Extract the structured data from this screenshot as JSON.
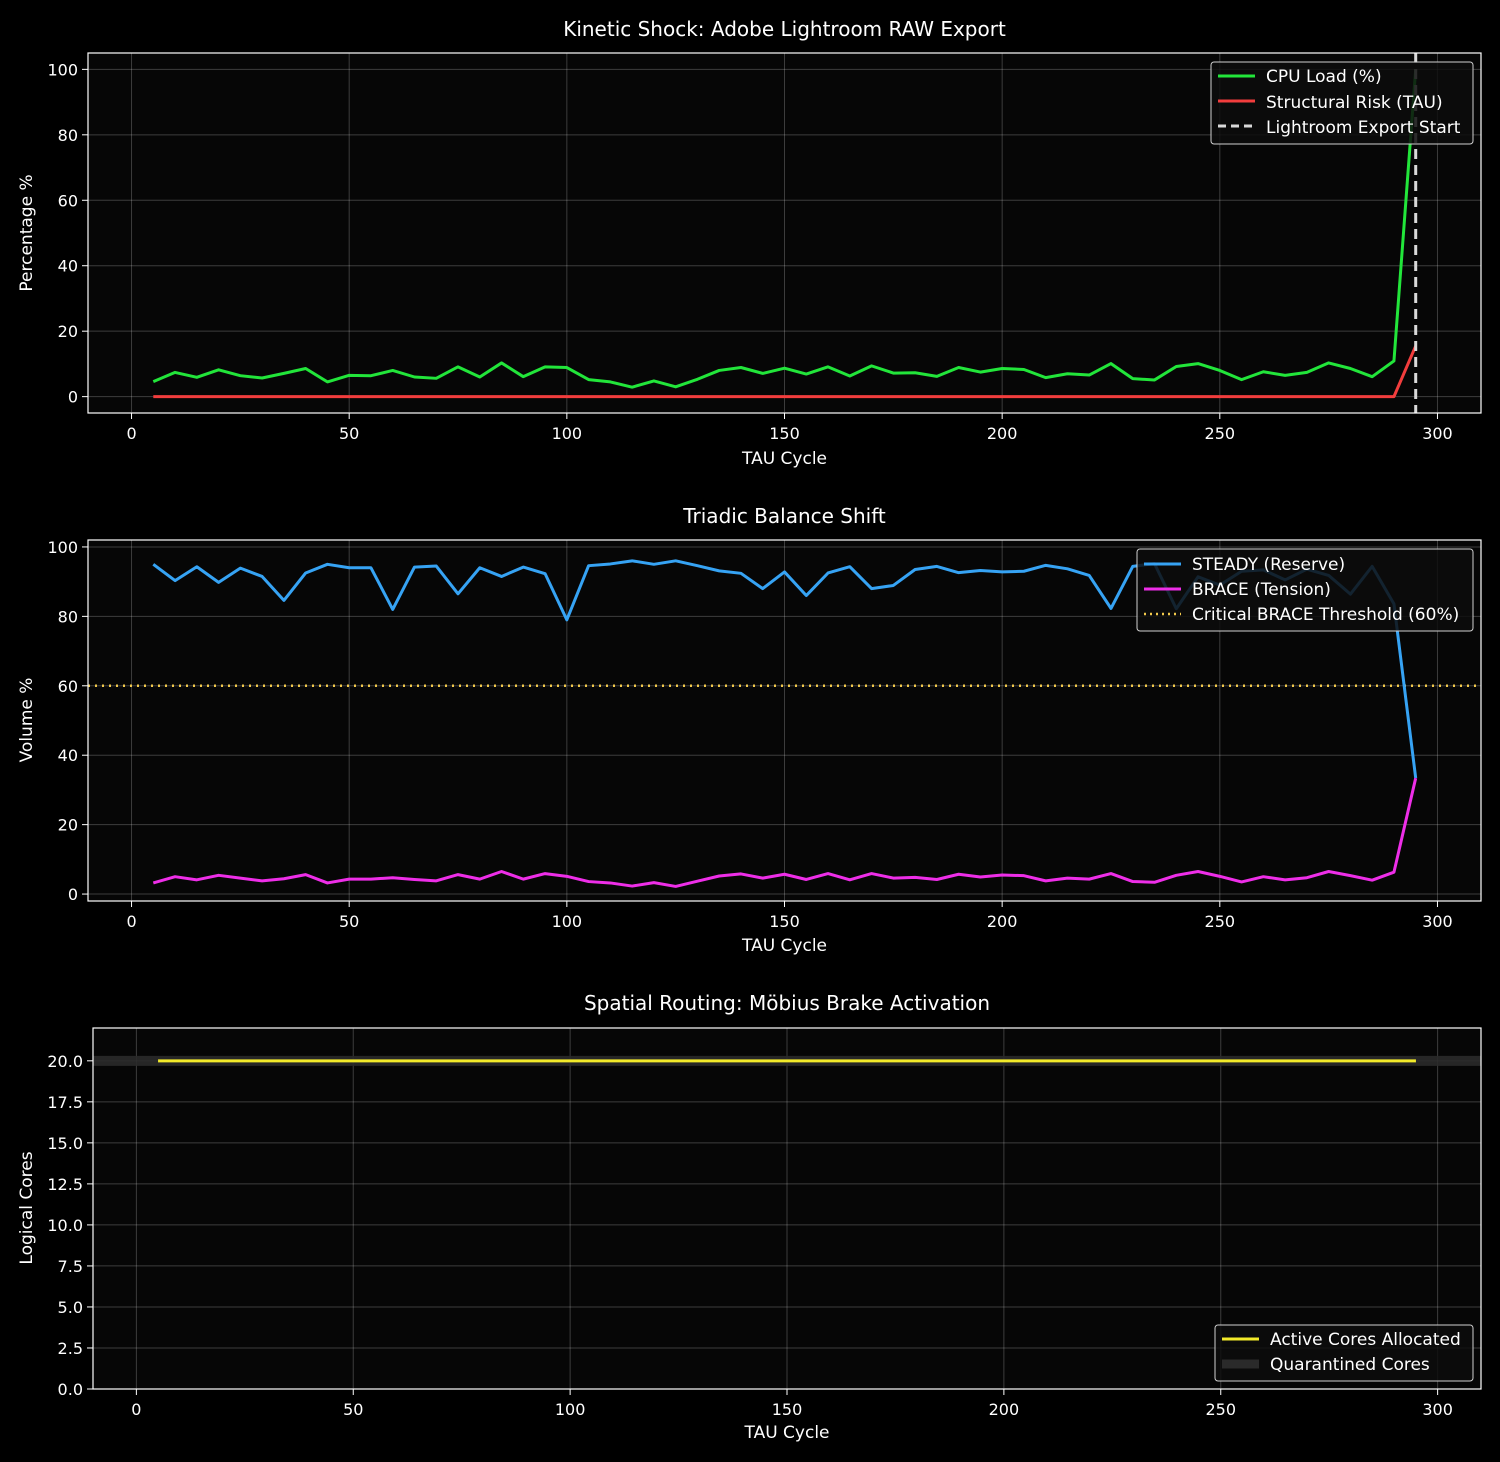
{
  "colors": {
    "background": "#000000",
    "cpu_load": "#22e53a",
    "structural_risk": "#f23d3d",
    "export_start": "#d9d9d9",
    "steady": "#36a3f4",
    "brace": "#ee2ee8",
    "threshold": "#f2c94c",
    "active_cores": "#f2ea2a",
    "quarantined": "#2a2a2a"
  },
  "chart_data": [
    {
      "type": "line",
      "title": "Kinetic Shock: Adobe Lightroom RAW Export",
      "xlabel": "TAU Cycle",
      "ylabel": "Percentage %",
      "xlim": [
        -10,
        310
      ],
      "ylim": [
        -5,
        105
      ],
      "xticks": [
        0,
        50,
        100,
        150,
        200,
        250,
        300
      ],
      "yticks": [
        0,
        20,
        40,
        60,
        80,
        100
      ],
      "grid": true,
      "legend_position": "top-right",
      "x": [
        5,
        10,
        15,
        20,
        25,
        30,
        35,
        40,
        45,
        50,
        55,
        60,
        65,
        70,
        75,
        80,
        85,
        90,
        95,
        100,
        105,
        110,
        115,
        120,
        125,
        130,
        135,
        140,
        145,
        150,
        155,
        160,
        165,
        170,
        175,
        180,
        185,
        190,
        195,
        200,
        205,
        210,
        215,
        220,
        225,
        230,
        235,
        240,
        245,
        250,
        255,
        260,
        265,
        270,
        275,
        280,
        285,
        290,
        295
      ],
      "series": [
        {
          "name": "CPU Load (%)",
          "style": "solid",
          "values": [
            4.6,
            7.4,
            5.9,
            8.2,
            6.4,
            5.7,
            7.1,
            8.6,
            4.5,
            6.5,
            6.4,
            8.0,
            6.0,
            5.6,
            9.1,
            6.0,
            10.3,
            6.1,
            9.1,
            8.9,
            5.2,
            4.5,
            2.9,
            4.8,
            3.0,
            5.3,
            8.0,
            8.9,
            7.1,
            8.7,
            6.9,
            9.1,
            6.3,
            9.4,
            7.2,
            7.3,
            6.2,
            8.9,
            7.5,
            8.6,
            8.3,
            5.8,
            7.0,
            6.6,
            10.1,
            5.5,
            5.1,
            9.2,
            10.1,
            8.0,
            5.2,
            7.6,
            6.5,
            7.4,
            10.3,
            8.6,
            6.1,
            10.9,
            100
          ]
        },
        {
          "name": "Structural Risk (TAU)",
          "style": "solid",
          "values": [
            0,
            0,
            0,
            0,
            0,
            0,
            0,
            0,
            0,
            0,
            0,
            0,
            0,
            0,
            0,
            0,
            0,
            0,
            0,
            0,
            0,
            0,
            0,
            0,
            0,
            0,
            0,
            0,
            0,
            0,
            0,
            0,
            0,
            0,
            0,
            0,
            0,
            0,
            0,
            0,
            0,
            0,
            0,
            0,
            0,
            0,
            0,
            0,
            0,
            0,
            0,
            0,
            0,
            0,
            0,
            0,
            0,
            0,
            15.5
          ]
        }
      ],
      "vlines": [
        {
          "name": "Lightroom Export Start",
          "x": 295,
          "style": "dashed"
        }
      ]
    },
    {
      "type": "line",
      "title": "Triadic Balance Shift",
      "xlabel": "TAU Cycle",
      "ylabel": "Volume %",
      "xlim": [
        -10,
        310
      ],
      "ylim": [
        -2,
        102
      ],
      "xticks": [
        0,
        50,
        100,
        150,
        200,
        250,
        300
      ],
      "yticks": [
        0,
        20,
        40,
        60,
        80,
        100
      ],
      "grid": true,
      "legend_position": "top-right",
      "x": [
        5,
        10,
        15,
        20,
        25,
        30,
        35,
        40,
        45,
        50,
        55,
        60,
        65,
        70,
        75,
        80,
        85,
        90,
        95,
        100,
        105,
        110,
        115,
        120,
        125,
        130,
        135,
        140,
        145,
        150,
        155,
        160,
        165,
        170,
        175,
        180,
        185,
        190,
        195,
        200,
        205,
        210,
        215,
        220,
        225,
        230,
        235,
        240,
        245,
        250,
        255,
        260,
        265,
        270,
        275,
        280,
        285,
        290,
        295
      ],
      "series": [
        {
          "name": "STEADY (Reserve)",
          "style": "solid",
          "values": [
            95.0,
            90.3,
            94.3,
            89.8,
            93.9,
            91.5,
            84.6,
            92.5,
            95.0,
            94.0,
            94.0,
            82.0,
            94.2,
            94.5,
            86.5,
            94.0,
            91.5,
            94.2,
            92.3,
            79.0,
            94.6,
            95.1,
            96.0,
            95.0,
            96.0,
            94.6,
            93.1,
            92.4,
            88.0,
            92.8,
            86.0,
            92.5,
            94.3,
            88.0,
            88.9,
            93.5,
            94.4,
            92.6,
            93.2,
            92.8,
            93.0,
            94.7,
            93.7,
            91.8,
            82.3,
            94.4,
            95.2,
            82.2,
            91.4,
            89.0,
            93.0,
            93.4,
            90.5,
            93.6,
            91.8,
            86.4,
            94.4,
            83.6,
            33.4
          ]
        },
        {
          "name": "BRACE (Tension)",
          "style": "solid",
          "values": [
            3.2,
            5.0,
            4.1,
            5.4,
            4.6,
            3.8,
            4.4,
            5.6,
            3.2,
            4.3,
            4.3,
            4.7,
            4.2,
            3.8,
            5.6,
            4.3,
            6.5,
            4.3,
            5.9,
            5.1,
            3.6,
            3.2,
            2.3,
            3.3,
            2.2,
            3.7,
            5.2,
            5.8,
            4.6,
            5.7,
            4.2,
            5.9,
            4.1,
            5.9,
            4.6,
            4.8,
            4.2,
            5.7,
            4.9,
            5.5,
            5.3,
            3.8,
            4.6,
            4.3,
            5.9,
            3.6,
            3.4,
            5.4,
            6.5,
            5.1,
            3.5,
            5.0,
            4.1,
            4.7,
            6.5,
            5.3,
            4.0,
            6.3,
            33.4
          ]
        }
      ],
      "hlines": [
        {
          "name": "Critical BRACE Threshold (60%)",
          "y": 60,
          "style": "dotted"
        }
      ]
    },
    {
      "type": "line",
      "title": "Spatial Routing: Möbius Brake Activation",
      "xlabel": "TAU Cycle",
      "ylabel": "Logical Cores",
      "xlim": [
        -10,
        310
      ],
      "ylim": [
        0,
        22
      ],
      "xticks": [
        0,
        50,
        100,
        150,
        200,
        250,
        300
      ],
      "yticks": [
        "0.0",
        "2.5",
        "5.0",
        "7.5",
        "10.0",
        "12.5",
        "15.0",
        "17.5",
        "20.0"
      ],
      "grid": true,
      "legend_position": "bottom-right",
      "series": [
        {
          "name": "Active Cores Allocated",
          "style": "solid",
          "x": [
            5,
            295
          ],
          "values": [
            20,
            20
          ]
        },
        {
          "name": "Quarantined Cores",
          "style": "band",
          "x": [
            -10,
            310
          ],
          "values": [
            20,
            20
          ]
        }
      ]
    }
  ]
}
